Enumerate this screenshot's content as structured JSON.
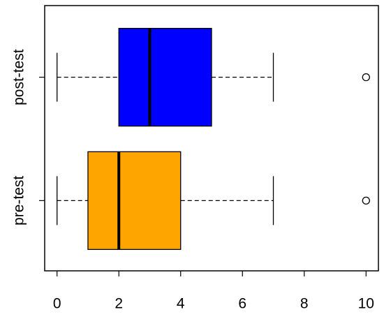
{
  "chart_data": {
    "type": "boxplot",
    "orientation": "horizontal",
    "categories": [
      "pre-test",
      "post-test"
    ],
    "boxes": [
      {
        "color": "#FFA500",
        "min": 0,
        "q1": 1,
        "median": 2,
        "q3": 4,
        "max": 7,
        "outliers": [
          10
        ]
      },
      {
        "color": "#0000FF",
        "min": 0,
        "q1": 2,
        "median": 3,
        "q3": 5,
        "max": 7,
        "outliers": [
          10
        ]
      }
    ],
    "xlim": [
      -0.4,
      10.4
    ],
    "xticks": [
      0,
      2,
      4,
      6,
      8,
      10
    ]
  }
}
